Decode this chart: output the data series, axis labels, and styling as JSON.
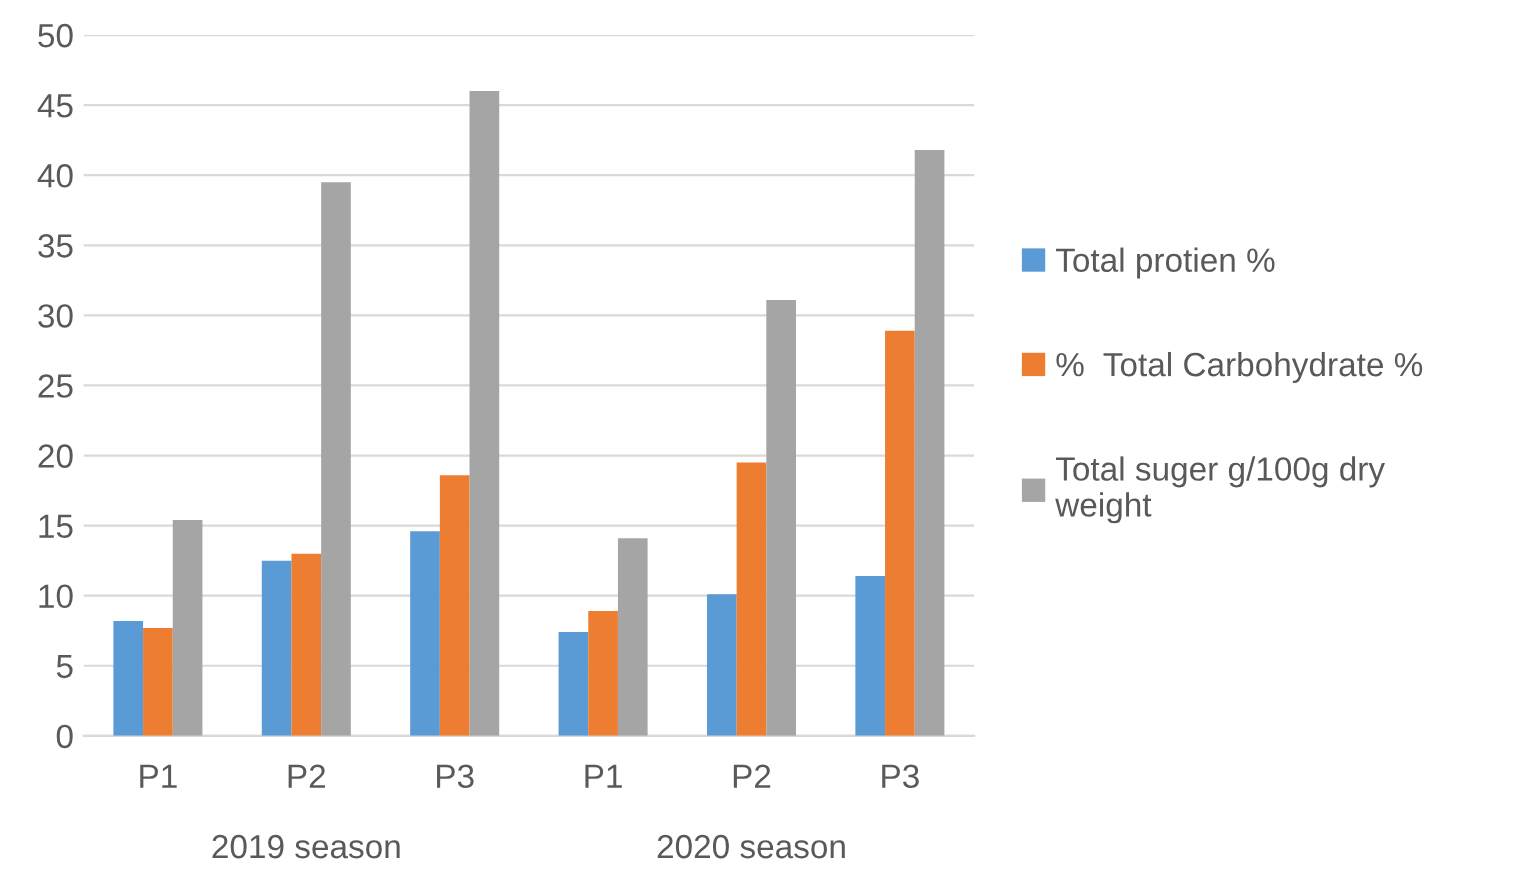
{
  "chart_data": {
    "type": "bar",
    "categories": [
      "P1",
      "P2",
      "P3",
      "P1",
      "P2",
      "P3"
    ],
    "series": [
      {
        "name": "Total protien %",
        "color": "#5b9bd5",
        "values": [
          8.2,
          12.5,
          14.6,
          7.4,
          10.1,
          11.4
        ]
      },
      {
        "name": "%  Total Carbohydrate %",
        "color": "#ed7d31",
        "values": [
          7.7,
          13.0,
          18.6,
          8.9,
          19.5,
          28.9
        ]
      },
      {
        "name": "Total suger g/100g dry weight",
        "color": "#a5a5a5",
        "values": [
          15.4,
          39.5,
          46,
          14.1,
          31.1,
          41.8
        ]
      }
    ],
    "annotations": [
      "2019 season",
      "2020 season"
    ],
    "ylim": [
      0,
      50
    ],
    "yticks": [
      0,
      5,
      10,
      15,
      20,
      25,
      30,
      35,
      40,
      45,
      50
    ],
    "grid": "y",
    "legend": "right"
  }
}
